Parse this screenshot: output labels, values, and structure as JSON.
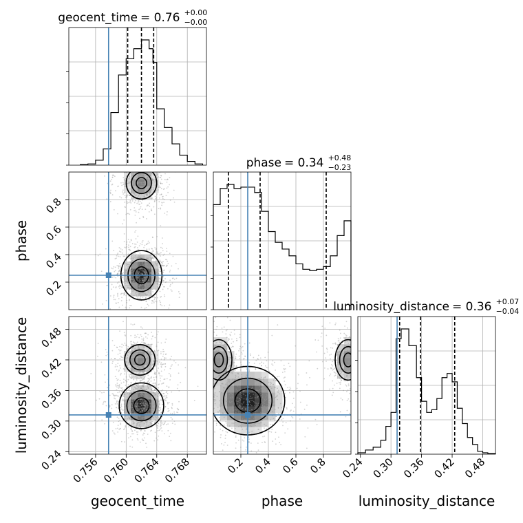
{
  "chart_data": {
    "type": "corner",
    "parameters": [
      "geocent_time",
      "phase",
      "luminosity_distance"
    ],
    "truths": {
      "geocent_time": 0.7577,
      "phase": 0.25,
      "luminosity_distance": 0.312
    },
    "ranges": {
      "geocent_time": [
        0.7525,
        0.7705
      ],
      "phase": [
        0.0,
        1.0
      ],
      "luminosity_distance": [
        0.235,
        0.505
      ]
    },
    "ticks": {
      "geocent_time": [
        0.756,
        0.76,
        0.764,
        0.768
      ],
      "geocent_time_labels": [
        "0.756",
        "0.760",
        "0.764",
        "0.768"
      ],
      "phase": [
        0.2,
        0.4,
        0.6,
        0.8
      ],
      "phase_labels": [
        "0.2",
        "0.4",
        "0.6",
        "0.8"
      ],
      "luminosity_distance": [
        0.24,
        0.3,
        0.36,
        0.42,
        0.48
      ],
      "luminosity_distance_labels": [
        "0.24",
        "0.30",
        "0.36",
        "0.42",
        "0.48"
      ]
    },
    "titles": {
      "geocent_time": {
        "name": "geocent_time",
        "median": "0.76",
        "plus": "+0.00",
        "minus": "−0.00"
      },
      "phase": {
        "name": "phase",
        "median": "0.34",
        "plus": "+0.48",
        "minus": "−0.23"
      },
      "luminosity_distance": {
        "name": "luminosity_distance",
        "median": "0.36",
        "plus": "+0.07",
        "minus": "−0.04"
      }
    },
    "axis_labels": {
      "geocent_time": "geocent_time",
      "phase": "phase",
      "luminosity_distance": "luminosity_distance"
    },
    "marginals": {
      "geocent_time": {
        "bin_edges": [
          0.754,
          0.755,
          0.756,
          0.757,
          0.758,
          0.759,
          0.76,
          0.761,
          0.762,
          0.763,
          0.7635,
          0.764,
          0.765,
          0.766,
          0.767,
          0.768,
          0.769,
          0.77
        ],
        "values": [
          0.005,
          0.01,
          0.04,
          0.13,
          0.42,
          0.72,
          0.85,
          0.93,
          1.0,
          0.93,
          0.82,
          0.45,
          0.3,
          0.17,
          0.08,
          0.03,
          0.01
        ],
        "quantiles": [
          0.7602,
          0.762,
          0.7636
        ]
      },
      "phase": {
        "bin_edges": [
          0.0,
          0.05,
          0.1,
          0.15,
          0.2,
          0.25,
          0.3,
          0.35,
          0.4,
          0.45,
          0.5,
          0.55,
          0.6,
          0.65,
          0.7,
          0.75,
          0.8,
          0.85,
          0.9,
          0.95,
          1.0
        ],
        "values": [
          0.78,
          0.9,
          0.93,
          0.9,
          0.91,
          0.91,
          0.87,
          0.73,
          0.58,
          0.5,
          0.45,
          0.4,
          0.34,
          0.3,
          0.29,
          0.3,
          0.32,
          0.4,
          0.55,
          0.66
        ],
        "quantiles": [
          0.11,
          0.34,
          0.82
        ]
      },
      "luminosity_distance": {
        "bin_edges": [
          0.235,
          0.25,
          0.265,
          0.28,
          0.29,
          0.3,
          0.31,
          0.32,
          0.335,
          0.35,
          0.36,
          0.37,
          0.38,
          0.39,
          0.4,
          0.41,
          0.42,
          0.43,
          0.44,
          0.45,
          0.46,
          0.47,
          0.48,
          0.49,
          0.505
        ],
        "values": [
          0.01,
          0.03,
          0.05,
          0.1,
          0.2,
          0.3,
          0.83,
          0.9,
          0.78,
          0.55,
          0.38,
          0.3,
          0.32,
          0.4,
          0.55,
          0.58,
          0.52,
          0.33,
          0.22,
          0.12,
          0.07,
          0.02,
          0.01,
          0.005
        ],
        "quantiles": [
          0.317,
          0.358,
          0.425
        ]
      }
    },
    "density_2d": [
      {
        "x": "geocent_time",
        "y": "phase",
        "modes": [
          {
            "cx": 0.762,
            "cy": 0.25,
            "sx": 0.0012,
            "sy": 0.08,
            "w": 1.0
          },
          {
            "cx": 0.762,
            "cy": 0.92,
            "sx": 0.0012,
            "sy": 0.07,
            "w": 0.55
          }
        ]
      },
      {
        "x": "geocent_time",
        "y": "luminosity_distance",
        "modes": [
          {
            "cx": 0.762,
            "cy": 0.33,
            "sx": 0.0013,
            "sy": 0.02,
            "w": 1.0
          },
          {
            "cx": 0.7618,
            "cy": 0.42,
            "sx": 0.0012,
            "sy": 0.018,
            "w": 0.55
          }
        ]
      },
      {
        "x": "phase",
        "y": "luminosity_distance",
        "modes": [
          {
            "cx": 0.25,
            "cy": 0.34,
            "sx": 0.12,
            "sy": 0.03,
            "w": 1.0
          },
          {
            "cx": 0.04,
            "cy": 0.42,
            "sx": 0.06,
            "sy": 0.025,
            "w": 0.5
          },
          {
            "cx": 0.98,
            "cy": 0.42,
            "sx": 0.06,
            "sy": 0.025,
            "w": 0.5
          }
        ]
      }
    ],
    "colors": {
      "truth": "#4682b4",
      "lines": "#000000",
      "grid": "#b0b0b0",
      "scatter": "#9a9a9a"
    },
    "grid": true
  }
}
